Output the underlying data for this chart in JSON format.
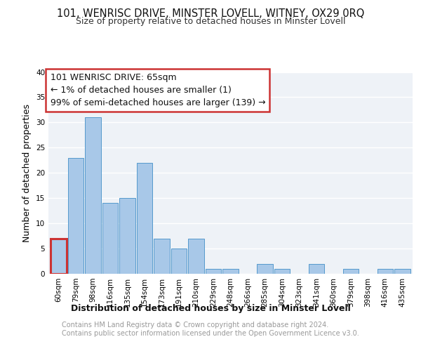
{
  "title": "101, WENRISC DRIVE, MINSTER LOVELL, WITNEY, OX29 0RQ",
  "subtitle": "Size of property relative to detached houses in Minster Lovell",
  "xlabel": "Distribution of detached houses by size in Minster Lovell",
  "ylabel": "Number of detached properties",
  "bin_labels": [
    "60sqm",
    "79sqm",
    "98sqm",
    "116sqm",
    "135sqm",
    "154sqm",
    "173sqm",
    "191sqm",
    "210sqm",
    "229sqm",
    "248sqm",
    "266sqm",
    "285sqm",
    "304sqm",
    "323sqm",
    "341sqm",
    "360sqm",
    "379sqm",
    "398sqm",
    "416sqm",
    "435sqm"
  ],
  "values": [
    7,
    23,
    31,
    14,
    15,
    22,
    7,
    5,
    7,
    1,
    1,
    0,
    2,
    1,
    0,
    2,
    0,
    1,
    0,
    1,
    1
  ],
  "bar_color": "#a8c8e8",
  "bar_edge_color": "#5599cc",
  "highlight_bar_index": 0,
  "highlight_color": "#cc3333",
  "annotation_line1": "101 WENRISC DRIVE: 65sqm",
  "annotation_line2": "← 1% of detached houses are smaller (1)",
  "annotation_line3": "99% of semi-detached houses are larger (139) →",
  "footer_text": "Contains HM Land Registry data © Crown copyright and database right 2024.\nContains public sector information licensed under the Open Government Licence v3.0.",
  "ylim": [
    0,
    40
  ],
  "yticks": [
    0,
    5,
    10,
    15,
    20,
    25,
    30,
    35,
    40
  ],
  "bg_color": "#eef2f7",
  "grid_color": "#ffffff",
  "title_fontsize": 10.5,
  "subtitle_fontsize": 9,
  "axis_label_fontsize": 9,
  "tick_fontsize": 7.5,
  "footer_fontsize": 7,
  "annotation_fontsize": 9
}
